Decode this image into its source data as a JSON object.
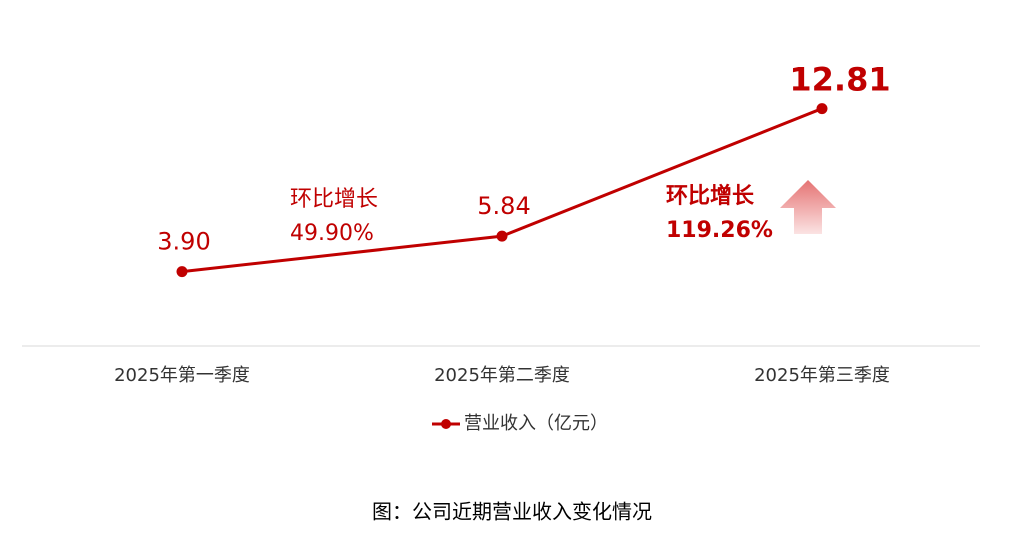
{
  "chart_data": {
    "type": "line",
    "categories": [
      "2025年第一季度",
      "2025年第二季度",
      "2025年第三季度"
    ],
    "series": [
      {
        "name": "营业收入（亿元）",
        "color": "#c00000",
        "values": [
          3.9,
          5.84,
          12.81
        ],
        "value_labels": [
          "3.90",
          "5.84",
          "12.81"
        ]
      }
    ],
    "annotations": [
      {
        "title": "环比增长",
        "text": "49.90%"
      },
      {
        "title": "环比增长",
        "text": "119.26%"
      }
    ],
    "legend": "bottom"
  },
  "caption": "图：公司近期营业收入变化情况"
}
